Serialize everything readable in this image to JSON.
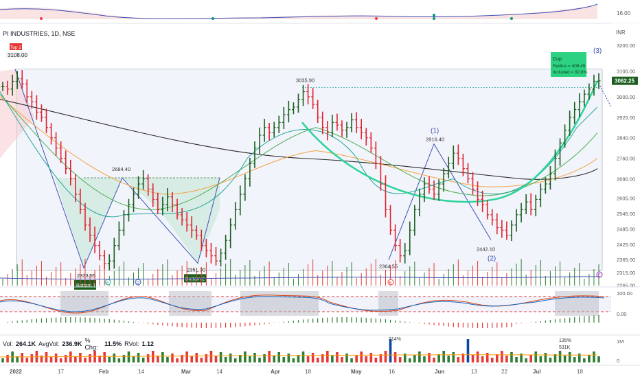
{
  "header": {
    "symbol": "PI INDUSTRIES, 1D, NSE"
  },
  "currency": "INR",
  "last_price": "3062.25",
  "top_indicator": {
    "value_label": "16.00"
  },
  "price_axis": [
    "3200.00",
    "3100.00",
    "3000.00",
    "2920.00",
    "2840.00",
    "2760.00",
    "2680.00",
    "2605.00",
    "2545.00",
    "2485.00",
    "2425.00",
    "2365.00",
    "2315.00",
    "2265.00"
  ],
  "stoch_axis": [
    "100.00",
    "0.00"
  ],
  "vol_axis": [
    "1M",
    "0"
  ],
  "x_axis": [
    "2022",
    "17",
    "Feb",
    "14",
    "Mar",
    "14",
    "Apr",
    "18",
    "May",
    "16",
    "Jun",
    "13",
    "22",
    "Jul",
    "18"
  ],
  "annotations": {
    "top": {
      "value": "3108.00",
      "tag": "Top 2"
    },
    "bottom1": {
      "value": "2333.55",
      "tag": "Bottom 1"
    },
    "bottom2": {
      "value": "2351.30",
      "tag": "Bottom 2"
    },
    "peak_feb": "2684.40",
    "peak_apr": "3035.90",
    "low_may": "2364.55",
    "peak_jun": "2816.40",
    "low_jun": "2442.10",
    "wave1": "(1)",
    "wave2": "(2)",
    "wave3": "(3)",
    "cup": {
      "title": "Cup",
      "line1": "Radius = 408.45",
      "line2": "Included = 92.8%"
    }
  },
  "vol_stats": {
    "vol_lbl": "Vol:",
    "vol": "264.1K",
    "avg_lbl": "AvgVol:",
    "avg": "236.9K",
    "chg_lbl": "% Chg:",
    "chg": "11.5%",
    "rvol_lbl": "RVol:",
    "rvol": "1.12"
  },
  "vol_marks": [
    "214%",
    "135%",
    "531K"
  ],
  "colors": {
    "up": "#089981",
    "down": "#f23645",
    "bull": "#1b5e20",
    "bear": "#e0232f",
    "cup": "#2ed39b",
    "ma_black": "#2a2a2a",
    "ma_orange": "#f7a142",
    "ma_green": "#4caf50",
    "ma_teal": "#26a69a"
  },
  "chart_data": {
    "type": "candlestick",
    "title": "PI INDUSTRIES, 1D, NSE",
    "ylabel": "INR",
    "ylim": [
      2280,
      3230
    ],
    "x_ticks": [
      "2022",
      "17",
      "Feb",
      "14",
      "Mar",
      "14",
      "Apr",
      "18",
      "May",
      "16",
      "Jun",
      "13",
      "22",
      "Jul",
      "18"
    ],
    "key_points": [
      {
        "label": "Top 2",
        "value": 3108.0
      },
      {
        "label": "2684.40",
        "value": 2684.4
      },
      {
        "label": "Bottom 1",
        "value": 2333.55
      },
      {
        "label": "Bottom 2",
        "value": 2351.3
      },
      {
        "label": "3035.90",
        "value": 3035.9
      },
      {
        "label": "2364.55",
        "value": 2364.55
      },
      {
        "label": "2816.40",
        "value": 2816.4
      },
      {
        "label": "2442.10",
        "value": 2442.1
      },
      {
        "label": "last",
        "value": 3062.25
      }
    ],
    "closes": [
      3040,
      3030,
      3060,
      3070,
      3050,
      3000,
      2980,
      2940,
      2920,
      2880,
      2840,
      2800,
      2760,
      2720,
      2680,
      2620,
      2560,
      2500,
      2460,
      2420,
      2380,
      2350,
      2360,
      2420,
      2480,
      2540,
      2580,
      2620,
      2660,
      2680,
      2640,
      2600,
      2560,
      2580,
      2610,
      2580,
      2540,
      2520,
      2500,
      2480,
      2460,
      2420,
      2400,
      2380,
      2360,
      2390,
      2440,
      2500,
      2560,
      2620,
      2680,
      2740,
      2800,
      2850,
      2880,
      2860,
      2880,
      2900,
      2930,
      2950,
      2960,
      2990,
      3020,
      3000,
      2970,
      2920,
      2880,
      2860,
      2900,
      2890,
      2870,
      2880,
      2910,
      2880,
      2860,
      2840,
      2800,
      2740,
      2660,
      2560,
      2480,
      2420,
      2380,
      2400,
      2480,
      2560,
      2620,
      2660,
      2640,
      2620,
      2660,
      2700,
      2740,
      2780,
      2760,
      2720,
      2680,
      2640,
      2600,
      2580,
      2540,
      2520,
      2490,
      2480,
      2460,
      2500,
      2540,
      2560,
      2590,
      2560,
      2600,
      2640,
      2660,
      2700,
      2760,
      2820,
      2870,
      2920,
      2950,
      2980,
      3010,
      3030,
      3060,
      3062
    ]
  }
}
